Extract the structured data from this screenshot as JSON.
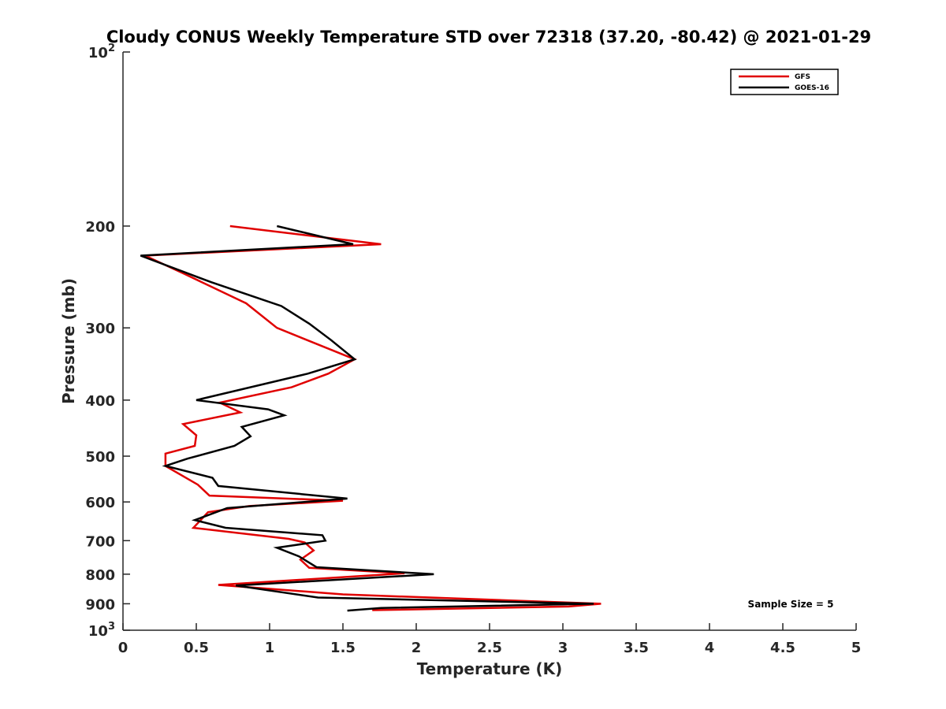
{
  "chart_data": {
    "type": "line",
    "title": "Cloudy CONUS Weekly Temperature STD over 72318 (37.20, -80.42) @ 2021-01-29",
    "xlabel": "Temperature (K)",
    "ylabel": "Pressure (mb)",
    "xlim": [
      0,
      5
    ],
    "ylim": [
      100,
      1000
    ],
    "y_scale": "log",
    "y_reversed": true,
    "x_ticks": [
      "0",
      "0.5",
      "1",
      "1.5",
      "2",
      "2.5",
      "3",
      "3.5",
      "4",
      "4.5",
      "5"
    ],
    "y_ticks": [
      {
        "value": 100,
        "base": "10",
        "exp": "2"
      },
      {
        "value": 200,
        "label": "200"
      },
      {
        "value": 300,
        "label": "300"
      },
      {
        "value": 400,
        "label": "400"
      },
      {
        "value": 500,
        "label": "500"
      },
      {
        "value": 600,
        "label": "600"
      },
      {
        "value": 700,
        "label": "700"
      },
      {
        "value": 800,
        "label": "800"
      },
      {
        "value": 900,
        "label": "900"
      },
      {
        "value": 1000,
        "base": "10",
        "exp": "3"
      }
    ],
    "grid": false,
    "legend_position": "top-right",
    "annotation": "Sample Size = 5",
    "series": [
      {
        "name": "GFS",
        "color": "#e00000",
        "x": [
          0.73,
          1.76,
          0.15,
          0.42,
          0.84,
          1.05,
          1.58,
          1.4,
          1.15,
          0.66,
          0.8,
          0.41,
          0.5,
          0.49,
          0.29,
          0.29,
          0.29,
          0.51,
          0.59,
          1.5,
          0.86,
          0.58,
          0.48,
          1.13,
          1.24,
          1.3,
          1.21,
          1.27,
          1.92,
          0.65,
          1.5,
          3.26,
          3.04,
          1.7
        ],
        "y": [
          200,
          215,
          225,
          242,
          272,
          300,
          340,
          360,
          380,
          404,
          420,
          440,
          460,
          480,
          495,
          505,
          520,
          560,
          585,
          597,
          610,
          625,
          665,
          695,
          705,
          728,
          755,
          780,
          797,
          835,
          867,
          900,
          910,
          923
        ]
      },
      {
        "name": "GOES-16",
        "color": "#000000",
        "x": [
          1.05,
          1.57,
          0.12,
          0.6,
          1.08,
          1.27,
          1.42,
          1.58,
          1.26,
          0.5,
          0.99,
          1.1,
          0.81,
          0.87,
          0.76,
          0.44,
          0.29,
          0.61,
          0.65,
          1.53,
          0.71,
          0.49,
          0.7,
          1.36,
          1.38,
          1.05,
          1.2,
          1.32,
          2.12,
          0.77,
          1.33,
          3.21,
          1.76,
          1.53
        ],
        "y": [
          200,
          215,
          225,
          250,
          275,
          295,
          315,
          340,
          360,
          400,
          415,
          425,
          445,
          462,
          480,
          505,
          520,
          545,
          563,
          592,
          615,
          645,
          665,
          685,
          700,
          720,
          745,
          778,
          800,
          837,
          878,
          900,
          915,
          925
        ]
      }
    ]
  }
}
